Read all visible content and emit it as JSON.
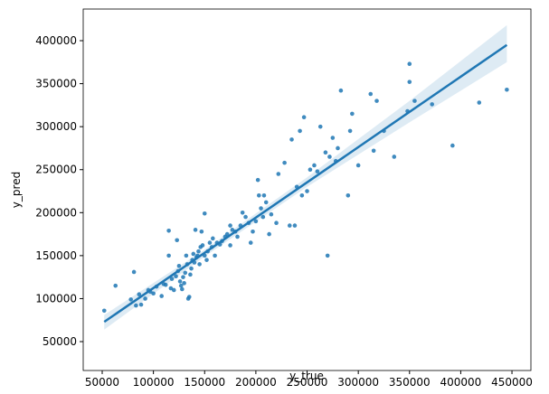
{
  "chart_data": {
    "type": "scatter",
    "xlabel": "y_true",
    "ylabel": "y_pred",
    "color": "#1f77b4",
    "xlim": [
      31460,
      468500
    ],
    "ylim": [
      16400,
      436800
    ],
    "xticks": [
      50000,
      100000,
      150000,
      200000,
      250000,
      300000,
      350000,
      400000,
      450000
    ],
    "yticks": [
      50000,
      100000,
      150000,
      200000,
      250000,
      300000,
      350000,
      400000
    ],
    "x": [
      52000,
      63000,
      78000,
      81000,
      83000,
      86000,
      88000,
      92000,
      95000,
      97000,
      100000,
      103000,
      108000,
      110000,
      112000,
      115000,
      115000,
      117000,
      118000,
      120000,
      122000,
      123000,
      124000,
      125000,
      126000,
      127000,
      128000,
      129000,
      130000,
      131000,
      132000,
      133000,
      134000,
      135000,
      136000,
      137000,
      138000,
      139000,
      140000,
      141000,
      142000,
      143000,
      144000,
      145000,
      146000,
      147000,
      148000,
      150000,
      150000,
      152000,
      153000,
      155000,
      157000,
      158000,
      160000,
      162000,
      165000,
      167000,
      170000,
      172000,
      175000,
      175000,
      177000,
      180000,
      182000,
      185000,
      187000,
      190000,
      193000,
      195000,
      197000,
      200000,
      202000,
      203000,
      205000,
      207000,
      208000,
      210000,
      213000,
      215000,
      220000,
      222000,
      228000,
      233000,
      235000,
      238000,
      240000,
      243000,
      245000,
      247000,
      250000,
      253000,
      257000,
      260000,
      263000,
      268000,
      270000,
      272000,
      275000,
      278000,
      280000,
      283000,
      290000,
      292000,
      294000,
      300000,
      312000,
      315000,
      318000,
      325000,
      335000,
      348000,
      350000,
      350000,
      355000,
      372000,
      392000,
      418000,
      445000
    ],
    "values": [
      86000,
      115000,
      99000,
      131000,
      92000,
      105000,
      93000,
      100000,
      110000,
      108000,
      106000,
      114000,
      103000,
      117000,
      116000,
      150000,
      179000,
      112000,
      123000,
      110000,
      126000,
      168000,
      132000,
      138000,
      120000,
      115000,
      111000,
      125000,
      118000,
      130000,
      150000,
      140000,
      100000,
      102000,
      128000,
      135000,
      145000,
      152000,
      142000,
      180000,
      148000,
      150000,
      155000,
      140000,
      160000,
      178000,
      162000,
      199000,
      150000,
      145000,
      155000,
      165000,
      160000,
      170000,
      150000,
      165000,
      163000,
      167000,
      172000,
      175000,
      162000,
      185000,
      180000,
      178000,
      172000,
      185000,
      200000,
      195000,
      188000,
      165000,
      178000,
      190000,
      238000,
      220000,
      205000,
      195000,
      220000,
      212000,
      175000,
      198000,
      188000,
      245000,
      258000,
      185000,
      285000,
      185000,
      230000,
      295000,
      220000,
      311000,
      225000,
      250000,
      255000,
      248000,
      300000,
      270000,
      150000,
      265000,
      287000,
      260000,
      275000,
      342000,
      220000,
      295000,
      315000,
      255000,
      338000,
      272000,
      330000,
      295000,
      265000,
      318000,
      373000,
      352000,
      330000,
      326000,
      278000,
      328000,
      343000
    ],
    "regression": {
      "x": [
        52000,
        445000
      ],
      "y": [
        73000,
        395000
      ]
    },
    "band": {
      "x": [
        52000,
        150000,
        250000,
        350000,
        445000
      ],
      "lower": [
        64000,
        149000,
        230000,
        305000,
        375000
      ],
      "upper": [
        81000,
        157000,
        241000,
        330000,
        418000
      ]
    }
  }
}
